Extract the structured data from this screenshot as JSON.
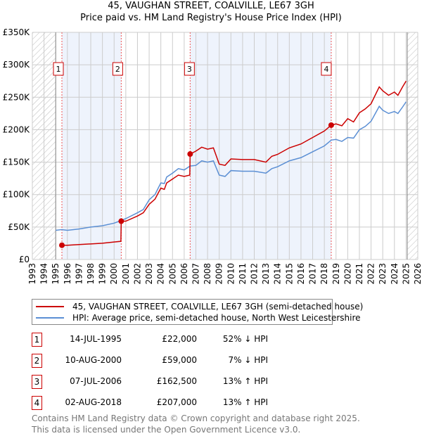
{
  "chart_data": {
    "type": "line",
    "title": "45, VAUGHAN STREET, COALVILLE, LE67 3GH",
    "subtitle": "Price paid vs. HM Land Registry's House Price Index (HPI)",
    "xlim": [
      1993,
      2026
    ],
    "ylim": [
      0,
      350000
    ],
    "yticks": [
      0,
      50000,
      100000,
      150000,
      200000,
      250000,
      300000,
      350000
    ],
    "ytick_labels": [
      "£0",
      "£50K",
      "£100K",
      "£150K",
      "£200K",
      "£250K",
      "£300K",
      "£350K"
    ],
    "xticks": [
      1993,
      1994,
      1995,
      1996,
      1997,
      1998,
      1999,
      2000,
      2001,
      2002,
      2003,
      2004,
      2005,
      2006,
      2007,
      2008,
      2009,
      2010,
      2011,
      2012,
      2013,
      2014,
      2015,
      2016,
      2017,
      2018,
      2019,
      2020,
      2021,
      2022,
      2023,
      2024,
      2025,
      2026
    ],
    "grid": true,
    "hatched_ranges": [
      [
        1993,
        1995
      ],
      [
        2025.1,
        2026
      ]
    ],
    "shaded_ranges": [
      [
        1995.53,
        2000.61
      ],
      [
        2006.51,
        2018.59
      ]
    ],
    "series": [
      {
        "name": "45, VAUGHAN STREET, COALVILLE, LE67 3GH (semi-detached house)",
        "color": "#cc0000",
        "x": [
          1995.53,
          1996,
          1997,
          1998,
          1999,
          2000,
          2000.58,
          2000.61,
          2001,
          2002,
          2002.5,
          2003,
          2003.5,
          2004,
          2004.3,
          2004.5,
          2005,
          2005.5,
          2006,
          2006.48,
          2006.51,
          2007,
          2007.5,
          2008,
          2008.5,
          2009,
          2009.5,
          2010,
          2011,
          2012,
          2013,
          2013.5,
          2014,
          2015,
          2016,
          2017,
          2018,
          2018.59,
          2019,
          2019.5,
          2020,
          2020.5,
          2021,
          2021.5,
          2022,
          2022.7,
          2023,
          2023.5,
          2024,
          2024.3,
          2024.7,
          2025
        ],
        "y": [
          22000,
          22000,
          23000,
          24000,
          25000,
          27000,
          28000,
          59000,
          59000,
          67000,
          72000,
          85000,
          93000,
          110000,
          108000,
          118000,
          124000,
          130000,
          128000,
          130000,
          162500,
          167000,
          173000,
          170000,
          172000,
          147000,
          145000,
          155000,
          154000,
          154000,
          150000,
          159000,
          162000,
          172000,
          178000,
          188000,
          198000,
          207000,
          209000,
          206000,
          217000,
          212000,
          226000,
          232000,
          240000,
          266000,
          260000,
          253000,
          258000,
          253000,
          266000,
          275000
        ]
      },
      {
        "name": "HPI: Average price, semi-detached house, North West Leicestershire",
        "color": "#5b8fd4",
        "x": [
          1995,
          1995.5,
          1996,
          1997,
          1998,
          1999,
          2000,
          2000.6,
          2001,
          2002,
          2002.5,
          2003,
          2003.5,
          2004,
          2004.3,
          2004.5,
          2005,
          2005.5,
          2006,
          2006.5,
          2007,
          2007.5,
          2008,
          2008.5,
          2009,
          2009.5,
          2010,
          2011,
          2012,
          2013,
          2013.5,
          2014,
          2015,
          2016,
          2017,
          2018,
          2018.6,
          2019,
          2019.5,
          2020,
          2020.5,
          2021,
          2021.5,
          2022,
          2022.7,
          2023,
          2023.5,
          2024,
          2024.3,
          2024.7,
          2025
        ],
        "y": [
          45000,
          46000,
          45000,
          47000,
          50000,
          52000,
          56000,
          60000,
          63000,
          72000,
          77000,
          92000,
          100000,
          118000,
          117000,
          127000,
          133000,
          140000,
          138000,
          144000,
          145000,
          152000,
          150000,
          152000,
          130000,
          128000,
          137000,
          136000,
          136000,
          133000,
          140000,
          143000,
          152000,
          157000,
          166000,
          175000,
          184000,
          185000,
          182000,
          188000,
          187000,
          200000,
          205000,
          213000,
          236000,
          230000,
          225000,
          228000,
          225000,
          235000,
          243000
        ]
      }
    ],
    "sales": [
      {
        "label": "1",
        "x": 1995.53,
        "price": 22000,
        "date": "14-JUL-1995",
        "price_text": "£22,000",
        "hpi": "52% ↓ HPI"
      },
      {
        "label": "2",
        "x": 2000.61,
        "price": 59000,
        "date": "10-AUG-2000",
        "price_text": "£59,000",
        "hpi": "7% ↓ HPI"
      },
      {
        "label": "3",
        "x": 2006.51,
        "price": 162500,
        "date": "07-JUL-2006",
        "price_text": "£162,500",
        "hpi": "13% ↑ HPI"
      },
      {
        "label": "4",
        "x": 2018.59,
        "price": 207000,
        "date": "02-AUG-2018",
        "price_text": "£207,000",
        "hpi": "13% ↑ HPI"
      }
    ]
  },
  "footer": {
    "line1": "Contains HM Land Registry data © Crown copyright and database right 2025.",
    "line2": "This data is licensed under the Open Government Licence v3.0."
  }
}
